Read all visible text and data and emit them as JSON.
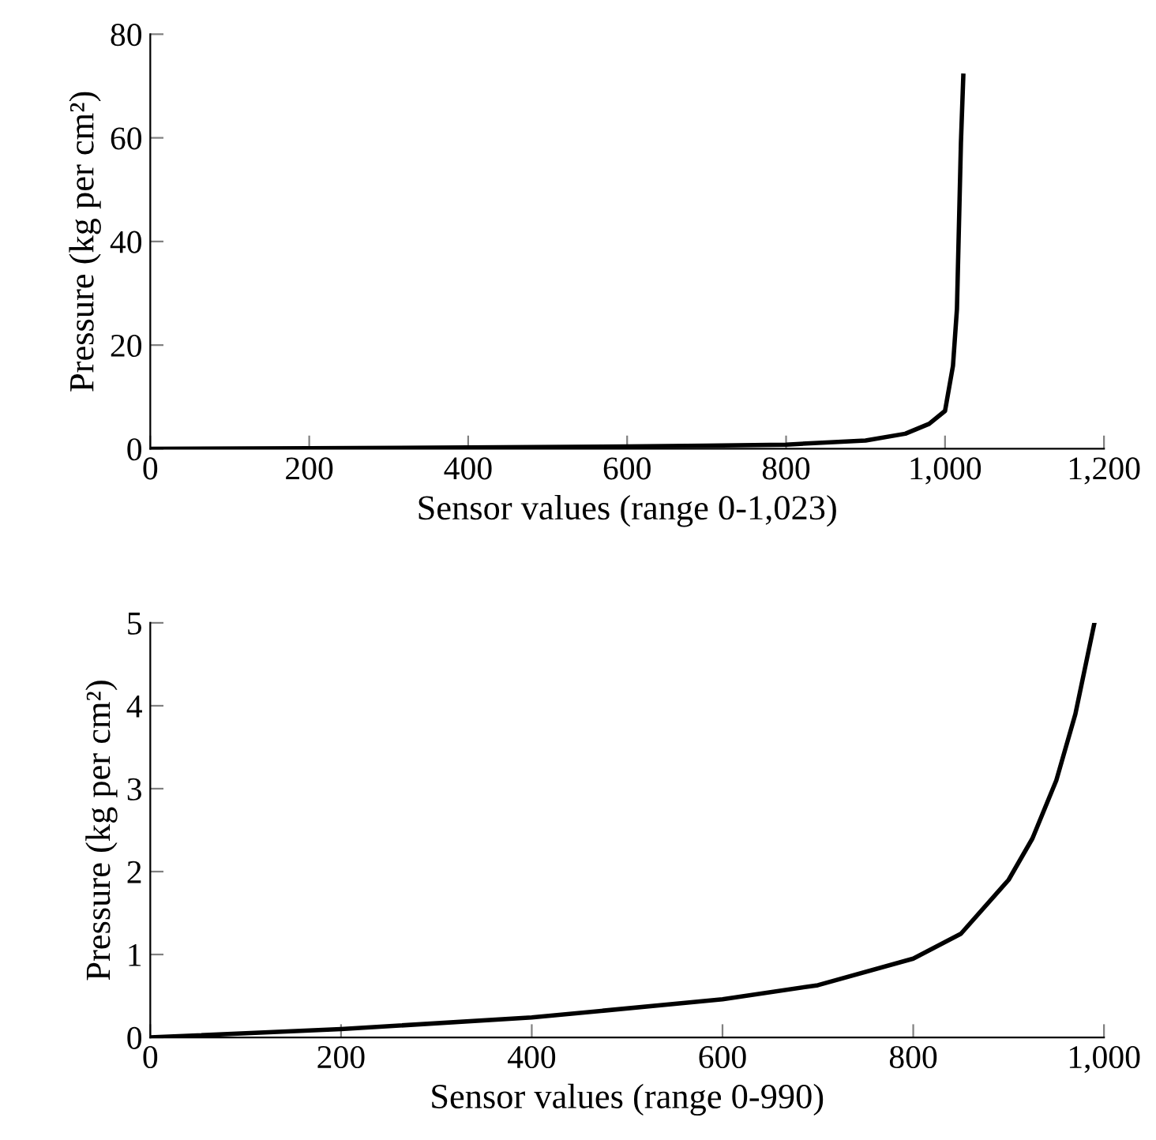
{
  "chart_data": [
    {
      "type": "line",
      "xlabel": "Sensor values (range 0-1,023)",
      "ylabel": "Pressure (kg per cm²)",
      "xlim": [
        0,
        1200
      ],
      "ylim": [
        0,
        80
      ],
      "xticks": [
        0,
        200,
        400,
        600,
        {
          "value": 800,
          "label": "800"
        },
        {
          "value": 1000,
          "label": "1,000"
        },
        {
          "value": 1200,
          "label": "1,200"
        }
      ],
      "yticks": [
        0,
        20,
        40,
        60,
        80
      ],
      "grid": false,
      "legend": false,
      "line_style": "solid",
      "series": [
        {
          "color": "#000000",
          "x": [
            0,
            200,
            400,
            600,
            700,
            800,
            900,
            950,
            980,
            1000,
            1010,
            1015,
            1020,
            1023
          ],
          "values": [
            0,
            0.1,
            0.25,
            0.45,
            0.6,
            0.8,
            1.6,
            2.9,
            4.8,
            7.3,
            16,
            27,
            59,
            72
          ]
        }
      ]
    },
    {
      "type": "line",
      "xlabel": "Sensor values (range 0-990)",
      "ylabel": "Pressure (kg per cm²)",
      "xlim": [
        0,
        1000
      ],
      "ylim": [
        0,
        5
      ],
      "xticks": [
        0,
        200,
        400,
        600,
        800,
        {
          "value": 1000,
          "label": "1,000"
        }
      ],
      "yticks": [
        0,
        1,
        2,
        3,
        4,
        5
      ],
      "grid": false,
      "legend": false,
      "line_style": "solid",
      "series": [
        {
          "color": "#000000",
          "x": [
            0,
            200,
            400,
            600,
            700,
            800,
            850,
            900,
            925,
            950,
            970,
            990
          ],
          "values": [
            0,
            0.1,
            0.24,
            0.46,
            0.63,
            0.95,
            1.25,
            1.9,
            2.4,
            3.1,
            3.9,
            5
          ]
        }
      ]
    }
  ]
}
